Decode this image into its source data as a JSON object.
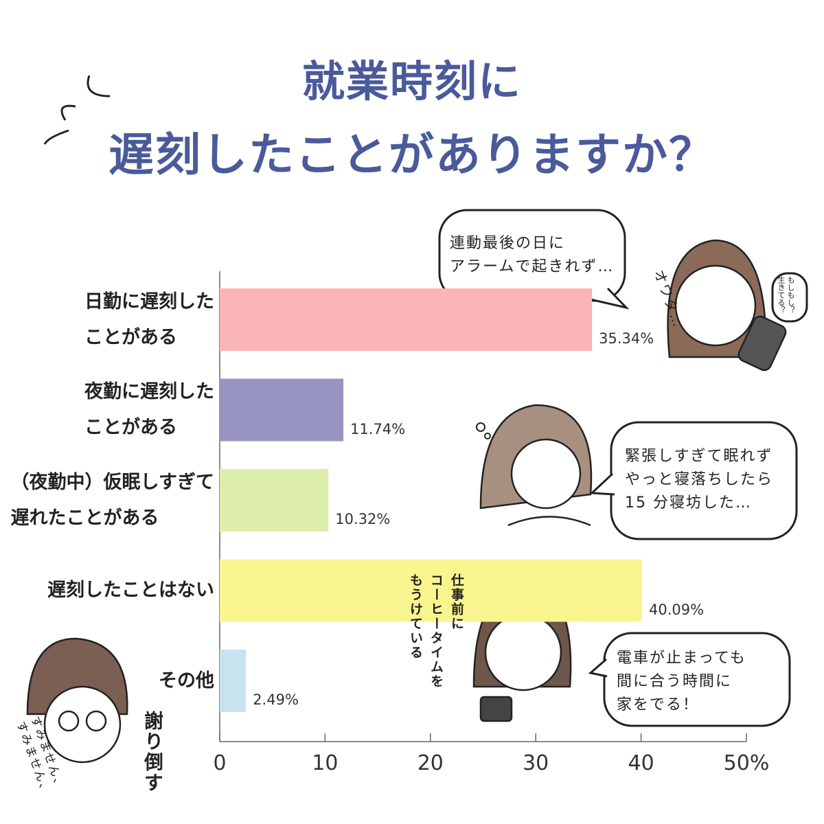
{
  "chart_data": {
    "type": "hbar",
    "title": [
      "就業時刻に",
      "遅刻したことがありますか？"
    ],
    "categories": [
      "日勤に遅刻した\nことがある",
      "夜勤に遅刻した\nことがある",
      "（夜勤中）仮眠しすぎて\n遅れたことがある",
      "遅刻したことはない",
      "その他"
    ],
    "values": [
      35.34,
      11.74,
      10.32,
      40.09,
      2.49
    ],
    "value_labels": [
      "35.34%",
      "11.74%",
      "10.32%",
      "40.09%",
      "2.49%"
    ],
    "colors": [
      "#f9b5b8",
      "#9794c2",
      "#ddedaa",
      "#faf68f",
      "#c7e3ef"
    ],
    "xlim": [
      0,
      50
    ],
    "xticks": [
      0,
      10,
      20,
      30,
      40,
      {
        "value": 50,
        "label": "50%"
      }
    ],
    "annotations": [
      "連動最後の日に\nアラームで起きれず…",
      "オワタ…",
      "もしもし？\n生きてる？",
      "緊張しすぎて眠れず\nやっと寝落ちしたら\n15 分寝坊した…",
      "仕事前に\nコーヒータイムを\nもうけている",
      "電車が止まっても\n間に合う時間に\n家をでる！",
      "すみません、\nすみません、",
      "謝り倒す"
    ]
  }
}
